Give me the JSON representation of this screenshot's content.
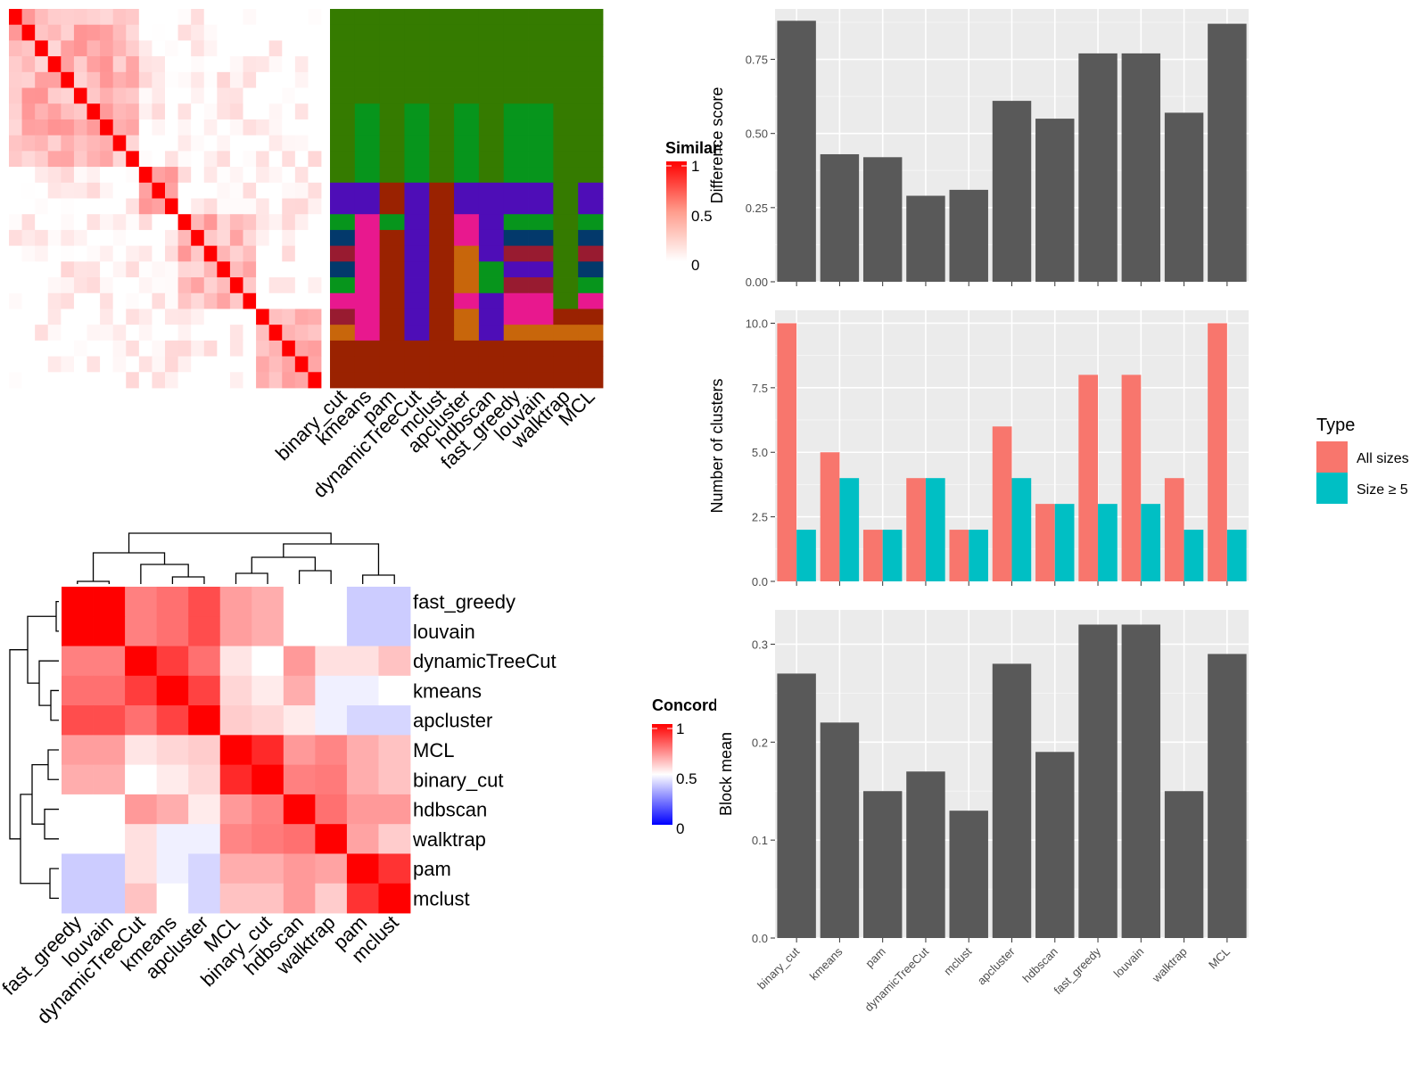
{
  "colors": {
    "bar_dark": "#595959",
    "panel_bg": "#ebebeb",
    "grid": "#ffffff",
    "type_all_sizes": "#F8766D",
    "type_size_ge5": "#00BFC4",
    "heat_high": "#ff0000",
    "heat_mid": "#ffffff",
    "heat_low": "#0000ff"
  },
  "similarity_legend": {
    "title": "Similarity",
    "ticks": [
      "1",
      "0.5",
      "0"
    ]
  },
  "concordance_legend": {
    "title": "Concordance",
    "ticks": [
      "1",
      "0.5",
      "0"
    ]
  },
  "top_methods": [
    "binary_cut",
    "kmeans",
    "pam",
    "dynamicTreeCut",
    "mclust",
    "apcluster",
    "hdbscan",
    "fast_greedy",
    "louvain",
    "walktrap",
    "MCL"
  ],
  "concordance_rows": [
    "fast_greedy",
    "louvain",
    "dynamicTreeCut",
    "kmeans",
    "apcluster",
    "MCL",
    "binary_cut",
    "hdbscan",
    "walktrap",
    "pam",
    "mclust"
  ],
  "concordance_cols": [
    "fast_greedy",
    "louvain",
    "dynamicTreeCut",
    "kmeans",
    "apcluster",
    "MCL",
    "binary_cut",
    "hdbscan",
    "walktrap",
    "pam",
    "mclust"
  ],
  "chart_data": [
    {
      "type": "heatmap",
      "title": "",
      "n": 24,
      "description_values": "symmetric similarity matrix of terms, diagonal = 1",
      "scale": [
        0,
        1
      ],
      "cluster_assignments_columns": [
        "binary_cut",
        "kmeans",
        "pam",
        "dynamicTreeCut",
        "mclust",
        "apcluster",
        "hdbscan",
        "fast_greedy",
        "louvain",
        "walktrap",
        "MCL"
      ],
      "cluster_assignments": [
        [
          "g",
          "g",
          "g",
          "g",
          "g",
          "g",
          "g",
          "g",
          "g",
          "g",
          "g"
        ],
        [
          "g",
          "g",
          "g",
          "g",
          "g",
          "g",
          "g",
          "g",
          "g",
          "g",
          "g"
        ],
        [
          "g",
          "g",
          "g",
          "g",
          "g",
          "g",
          "g",
          "g",
          "g",
          "g",
          "g"
        ],
        [
          "g",
          "g",
          "g",
          "g",
          "g",
          "g",
          "g",
          "g",
          "g",
          "g",
          "g"
        ],
        [
          "g",
          "g",
          "g",
          "g",
          "g",
          "g",
          "g",
          "g",
          "g",
          "g",
          "g"
        ],
        [
          "g",
          "g",
          "g",
          "g",
          "g",
          "g",
          "g",
          "g",
          "g",
          "g",
          "g"
        ],
        [
          "g",
          "G",
          "g",
          "G",
          "g",
          "G",
          "g",
          "G",
          "G",
          "g",
          "g"
        ],
        [
          "g",
          "G",
          "g",
          "G",
          "g",
          "G",
          "g",
          "G",
          "G",
          "g",
          "g"
        ],
        [
          "g",
          "G",
          "g",
          "G",
          "g",
          "G",
          "g",
          "G",
          "G",
          "g",
          "g"
        ],
        [
          "g",
          "G",
          "g",
          "G",
          "g",
          "G",
          "g",
          "G",
          "G",
          "g",
          "g"
        ],
        [
          "g",
          "G",
          "g",
          "G",
          "g",
          "G",
          "g",
          "G",
          "G",
          "g",
          "g"
        ],
        [
          "P",
          "P",
          "R",
          "P",
          "R",
          "P",
          "P",
          "P",
          "P",
          "g",
          "P"
        ],
        [
          "P",
          "P",
          "R",
          "P",
          "R",
          "P",
          "P",
          "P",
          "P",
          "g",
          "P"
        ],
        [
          "G",
          "K",
          "G",
          "P",
          "R",
          "K",
          "P",
          "G",
          "G",
          "g",
          "G"
        ],
        [
          "N",
          "K",
          "R",
          "P",
          "R",
          "K",
          "P",
          "N",
          "N",
          "g",
          "N"
        ],
        [
          "C",
          "K",
          "R",
          "P",
          "R",
          "O",
          "P",
          "C",
          "C",
          "g",
          "C"
        ],
        [
          "N",
          "K",
          "R",
          "P",
          "R",
          "O",
          "G",
          "P",
          "P",
          "g",
          "N"
        ],
        [
          "G",
          "K",
          "R",
          "P",
          "R",
          "O",
          "G",
          "C",
          "C",
          "g",
          "G"
        ],
        [
          "K",
          "K",
          "R",
          "P",
          "R",
          "K",
          "P",
          "K",
          "K",
          "g",
          "K"
        ],
        [
          "C",
          "K",
          "R",
          "P",
          "R",
          "O",
          "P",
          "K",
          "K",
          "R",
          "R"
        ],
        [
          "O",
          "K",
          "R",
          "P",
          "R",
          "O",
          "P",
          "O",
          "O",
          "O",
          "O"
        ],
        [
          "R",
          "R",
          "R",
          "R",
          "R",
          "R",
          "R",
          "R",
          "R",
          "R",
          "R"
        ],
        [
          "R",
          "R",
          "R",
          "R",
          "R",
          "R",
          "R",
          "R",
          "R",
          "R",
          "R"
        ],
        [
          "R",
          "R",
          "R",
          "R",
          "R",
          "R",
          "R",
          "R",
          "R",
          "R",
          "R"
        ]
      ]
    },
    {
      "type": "bar",
      "categories": [
        "binary_cut",
        "kmeans",
        "pam",
        "dynamicTreeCut",
        "mclust",
        "apcluster",
        "hdbscan",
        "fast_greedy",
        "louvain",
        "walktrap",
        "MCL"
      ],
      "values": [
        0.88,
        0.43,
        0.42,
        0.29,
        0.31,
        0.61,
        0.55,
        0.77,
        0.77,
        0.57,
        0.87
      ],
      "ylabel": "Difference score",
      "ylim": [
        0,
        0.92
      ],
      "yticks": [
        "0.00",
        "0.25",
        "0.50",
        "0.75"
      ],
      "ytick_values": [
        0,
        0.25,
        0.5,
        0.75
      ]
    },
    {
      "type": "bar",
      "categories": [
        "binary_cut",
        "kmeans",
        "pam",
        "dynamicTreeCut",
        "mclust",
        "apcluster",
        "hdbscan",
        "fast_greedy",
        "louvain",
        "walktrap",
        "MCL"
      ],
      "series": [
        {
          "name": "All sizes",
          "values": [
            10,
            5,
            2,
            4,
            2,
            6,
            3,
            8,
            8,
            4,
            10
          ]
        },
        {
          "name": "Size ≥ 5",
          "values": [
            2,
            4,
            2,
            4,
            2,
            4,
            3,
            3,
            3,
            2,
            2
          ]
        }
      ],
      "ylabel": "Number of clusters",
      "ylim": [
        0,
        10.5
      ],
      "yticks": [
        "0.0",
        "2.5",
        "5.0",
        "7.5",
        "10.0"
      ],
      "ytick_values": [
        0,
        2.5,
        5,
        7.5,
        10
      ],
      "legend_title": "Type"
    },
    {
      "type": "bar",
      "categories": [
        "binary_cut",
        "kmeans",
        "pam",
        "dynamicTreeCut",
        "mclust",
        "apcluster",
        "hdbscan",
        "fast_greedy",
        "louvain",
        "walktrap",
        "MCL"
      ],
      "values": [
        0.27,
        0.22,
        0.15,
        0.17,
        0.13,
        0.28,
        0.19,
        0.32,
        0.32,
        0.15,
        0.29
      ],
      "ylabel": "Block mean",
      "ylim": [
        0,
        0.335
      ],
      "yticks": [
        "0.0",
        "0.1",
        "0.2",
        "0.3"
      ],
      "ytick_values": [
        0,
        0.1,
        0.2,
        0.3
      ]
    },
    {
      "type": "heatmap",
      "scale": [
        0,
        1
      ],
      "rows": [
        "fast_greedy",
        "louvain",
        "dynamicTreeCut",
        "kmeans",
        "apcluster",
        "MCL",
        "binary_cut",
        "hdbscan",
        "walktrap",
        "pam",
        "mclust"
      ],
      "cols": [
        "fast_greedy",
        "louvain",
        "dynamicTreeCut",
        "kmeans",
        "apcluster",
        "MCL",
        "binary_cut",
        "hdbscan",
        "walktrap",
        "pam",
        "mclust"
      ],
      "values": [
        [
          1.0,
          1.0,
          0.75,
          0.78,
          0.85,
          0.69,
          0.66,
          0.5,
          0.5,
          0.4,
          0.4
        ],
        [
          1.0,
          1.0,
          0.75,
          0.78,
          0.85,
          0.69,
          0.66,
          0.5,
          0.5,
          0.4,
          0.4
        ],
        [
          0.75,
          0.75,
          1.0,
          0.88,
          0.78,
          0.55,
          0.5,
          0.7,
          0.56,
          0.56,
          0.62
        ],
        [
          0.78,
          0.78,
          0.88,
          1.0,
          0.87,
          0.58,
          0.54,
          0.66,
          0.47,
          0.47,
          0.5
        ],
        [
          0.85,
          0.85,
          0.78,
          0.87,
          1.0,
          0.6,
          0.58,
          0.54,
          0.47,
          0.42,
          0.42
        ],
        [
          0.69,
          0.69,
          0.55,
          0.58,
          0.6,
          1.0,
          0.92,
          0.7,
          0.74,
          0.66,
          0.62
        ],
        [
          0.66,
          0.66,
          0.5,
          0.54,
          0.58,
          0.92,
          1.0,
          0.75,
          0.76,
          0.66,
          0.62
        ],
        [
          0.5,
          0.5,
          0.7,
          0.66,
          0.54,
          0.7,
          0.75,
          1.0,
          0.78,
          0.7,
          0.7
        ],
        [
          0.5,
          0.5,
          0.56,
          0.47,
          0.47,
          0.74,
          0.76,
          0.78,
          1.0,
          0.68,
          0.6
        ],
        [
          0.4,
          0.4,
          0.56,
          0.47,
          0.42,
          0.66,
          0.66,
          0.7,
          0.68,
          1.0,
          0.9
        ],
        [
          0.4,
          0.4,
          0.62,
          0.5,
          0.42,
          0.62,
          0.62,
          0.7,
          0.6,
          0.9,
          1.0
        ]
      ]
    }
  ]
}
